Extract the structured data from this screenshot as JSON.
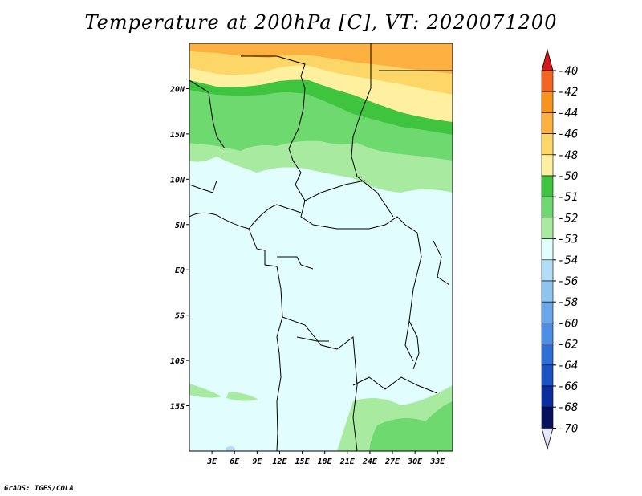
{
  "title": "Temperature at 200hPa [C], VT: 2020071200",
  "credit": "GrADS: IGES/COLA",
  "map": {
    "lat_ticks": [
      "20N",
      "15N",
      "10N",
      "5N",
      "EQ",
      "5S",
      "10S",
      "15S"
    ],
    "lat_values": [
      20,
      15,
      10,
      5,
      0,
      -5,
      -10,
      -15
    ],
    "lon_ticks": [
      "3E",
      "6E",
      "9E",
      "12E",
      "15E",
      "18E",
      "21E",
      "24E",
      "27E",
      "30E",
      "33E"
    ],
    "lon_values": [
      3,
      6,
      9,
      12,
      15,
      18,
      21,
      24,
      27,
      30,
      33
    ],
    "lon_range": [
      0,
      35
    ],
    "lat_range": [
      -20,
      25
    ]
  },
  "colorbar": {
    "top_arrow_color": "#d7191c",
    "bottom_arrow_color": "#e6e6fa",
    "levels": [
      {
        "label": "-40",
        "color": "#f03b20"
      },
      {
        "label": "-42",
        "color": "#f26522"
      },
      {
        "label": "-44",
        "color": "#f7941d"
      },
      {
        "label": "-46",
        "color": "#fbb040"
      },
      {
        "label": "-48",
        "color": "#fdd668"
      },
      {
        "label": "-50",
        "color": "#fff0a0"
      },
      {
        "label": "-51",
        "color": "#3fc43f"
      },
      {
        "label": "-52",
        "color": "#6ed96e"
      },
      {
        "label": "-53",
        "color": "#a8eba0"
      },
      {
        "label": "-54",
        "color": "#e2fdfd"
      },
      {
        "label": "-56",
        "color": "#b3dcf7"
      },
      {
        "label": "-58",
        "color": "#8dc4f0"
      },
      {
        "label": "-60",
        "color": "#6aa8eb"
      },
      {
        "label": "-62",
        "color": "#4c8ee3"
      },
      {
        "label": "-64",
        "color": "#2e6fd6"
      },
      {
        "label": "-66",
        "color": "#1a52c4"
      },
      {
        "label": "-68",
        "color": "#0b2e9e"
      },
      {
        "label": "-70",
        "color": "#07115e"
      }
    ]
  }
}
